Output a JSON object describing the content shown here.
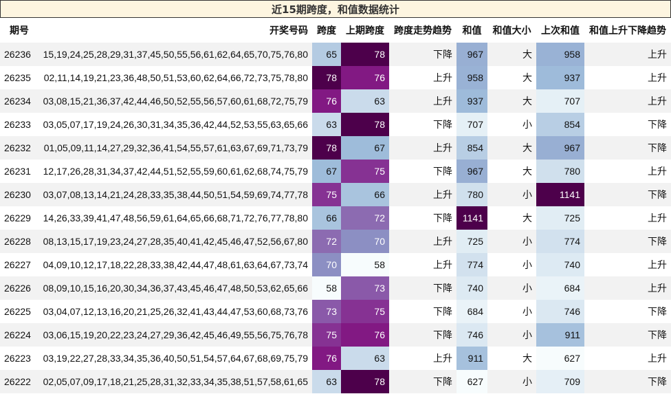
{
  "title": "近15期跨度，和值数据统计",
  "headers": [
    "期号",
    "开奖号码",
    "跨度",
    "上期跨度",
    "跨度走势趋势",
    "和值",
    "和值大小",
    "上次和值",
    "和值上升下降趋势"
  ],
  "rows": [
    {
      "issue": "26236",
      "numbers": "15,19,24,25,28,29,31,37,45,50,55,56,61,62,64,65,70,75,76,80",
      "span": "65",
      "prev_span": "78",
      "span_trend": "下降",
      "sum": "967",
      "size": "大",
      "prev_sum": "958",
      "sum_trend": "上升"
    },
    {
      "issue": "26235",
      "numbers": "02,11,14,19,21,23,36,48,50,51,53,60,62,64,66,72,73,75,78,80",
      "span": "78",
      "prev_span": "76",
      "span_trend": "上升",
      "sum": "958",
      "size": "大",
      "prev_sum": "937",
      "sum_trend": "上升"
    },
    {
      "issue": "26234",
      "numbers": "03,08,15,21,36,37,42,44,46,50,52,55,56,57,60,61,68,72,75,79",
      "span": "76",
      "prev_span": "63",
      "span_trend": "上升",
      "sum": "937",
      "size": "大",
      "prev_sum": "707",
      "sum_trend": "上升"
    },
    {
      "issue": "26233",
      "numbers": "03,05,07,17,19,24,26,30,31,34,35,36,42,44,52,53,55,63,65,66",
      "span": "63",
      "prev_span": "78",
      "span_trend": "下降",
      "sum": "707",
      "size": "小",
      "prev_sum": "854",
      "sum_trend": "下降"
    },
    {
      "issue": "26232",
      "numbers": "01,05,09,11,14,27,29,32,36,41,54,55,57,61,63,67,69,71,73,79",
      "span": "78",
      "prev_span": "67",
      "span_trend": "上升",
      "sum": "854",
      "size": "大",
      "prev_sum": "967",
      "sum_trend": "下降"
    },
    {
      "issue": "26231",
      "numbers": "12,17,26,28,31,34,37,42,44,51,52,55,59,60,61,62,68,74,75,79",
      "span": "67",
      "prev_span": "75",
      "span_trend": "下降",
      "sum": "967",
      "size": "大",
      "prev_sum": "780",
      "sum_trend": "上升"
    },
    {
      "issue": "26230",
      "numbers": "03,07,08,13,14,21,24,28,33,35,38,44,50,51,54,59,69,74,77,78",
      "span": "75",
      "prev_span": "66",
      "span_trend": "上升",
      "sum": "780",
      "size": "小",
      "prev_sum": "1141",
      "sum_trend": "下降"
    },
    {
      "issue": "26229",
      "numbers": "14,26,33,39,41,47,48,56,59,61,64,65,66,68,71,72,76,77,78,80",
      "span": "66",
      "prev_span": "72",
      "span_trend": "下降",
      "sum": "1141",
      "size": "大",
      "prev_sum": "725",
      "sum_trend": "上升"
    },
    {
      "issue": "26228",
      "numbers": "08,13,15,17,19,23,24,27,28,35,40,41,42,45,46,47,52,56,67,80",
      "span": "72",
      "prev_span": "70",
      "span_trend": "上升",
      "sum": "725",
      "size": "小",
      "prev_sum": "774",
      "sum_trend": "下降"
    },
    {
      "issue": "26227",
      "numbers": "04,09,10,12,17,18,22,28,33,38,42,44,47,48,61,63,64,67,73,74",
      "span": "70",
      "prev_span": "58",
      "span_trend": "上升",
      "sum": "774",
      "size": "小",
      "prev_sum": "740",
      "sum_trend": "上升"
    },
    {
      "issue": "26226",
      "numbers": "08,09,10,15,16,20,30,34,36,37,43,45,46,47,48,50,53,62,65,66",
      "span": "58",
      "prev_span": "73",
      "span_trend": "下降",
      "sum": "740",
      "size": "小",
      "prev_sum": "684",
      "sum_trend": "上升"
    },
    {
      "issue": "26225",
      "numbers": "03,04,07,12,13,16,20,21,25,26,32,41,43,44,47,53,60,68,73,76",
      "span": "73",
      "prev_span": "75",
      "span_trend": "下降",
      "sum": "684",
      "size": "小",
      "prev_sum": "746",
      "sum_trend": "下降"
    },
    {
      "issue": "26224",
      "numbers": "03,06,15,19,20,22,23,24,27,29,36,42,45,46,49,55,56,75,76,78",
      "span": "75",
      "prev_span": "76",
      "span_trend": "下降",
      "sum": "746",
      "size": "小",
      "prev_sum": "911",
      "sum_trend": "下降"
    },
    {
      "issue": "26223",
      "numbers": "03,19,22,27,28,33,34,35,36,40,50,51,54,57,64,67,68,69,75,79",
      "span": "76",
      "prev_span": "63",
      "span_trend": "上升",
      "sum": "911",
      "size": "大",
      "prev_sum": "627",
      "sum_trend": "上升"
    },
    {
      "issue": "26222",
      "numbers": "02,05,07,09,17,18,21,25,28,31,32,33,34,35,38,51,57,58,61,65",
      "span": "63",
      "prev_span": "78",
      "span_trend": "下降",
      "sum": "627",
      "size": "小",
      "prev_sum": "709",
      "sum_trend": "下降"
    }
  ],
  "colors": {
    "title_bg": "#fdf5e0",
    "heat_low": "#f7fcfd",
    "heat_high": "#4d004b",
    "row_alt": "#f2f2f2"
  }
}
